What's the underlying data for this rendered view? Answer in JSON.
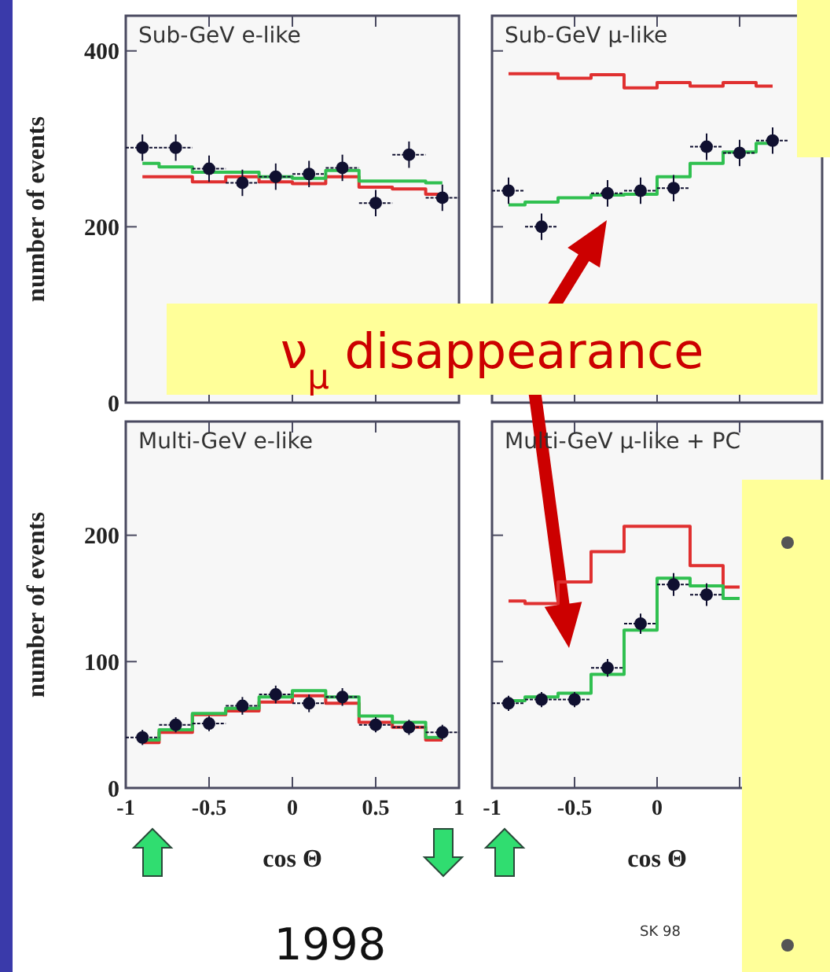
{
  "chart_data": [
    {
      "type": "step",
      "title": "Sub-GeV e-like",
      "ylabel": "number of events",
      "xlim": [
        -1,
        1
      ],
      "xticks": [
        -1,
        -0.5,
        0,
        0.5,
        1
      ],
      "ylim": [
        0,
        440
      ],
      "yticks": [
        0,
        200,
        400
      ],
      "tick_labels": "y",
      "annotations": [
        "ν$_{μ}$ disappearance"
      ],
      "series": [
        {
          "color": "#e03030",
          "x": [
            -0.9,
            -0.7,
            -0.5,
            -0.3,
            -0.1,
            0.1,
            0.3,
            0.5,
            0.7,
            0.9
          ],
          "values": [
            257,
            257,
            251,
            257,
            251,
            249,
            257,
            245,
            243,
            237
          ]
        },
        {
          "color": "#30c050",
          "x": [
            -0.9,
            -0.7,
            -0.5,
            -0.3,
            -0.1,
            0.1,
            0.3,
            0.5,
            0.7,
            0.9
          ],
          "values": [
            272,
            268,
            262,
            262,
            257,
            255,
            264,
            252,
            252,
            250
          ]
        },
        {
          "type": "scatter",
          "marker": "circle",
          "color": "#101030",
          "x": [
            -0.9,
            -0.7,
            -0.5,
            -0.3,
            -0.1,
            0.1,
            0.3,
            0.5,
            0.7,
            0.9
          ],
          "values": [
            290,
            290,
            266,
            250,
            257,
            260,
            267,
            227,
            282,
            233
          ],
          "errors": [
            15,
            15,
            15,
            15,
            15,
            15,
            15,
            15,
            15,
            15
          ],
          "xerrors": [
            0.1,
            0.1,
            0.1,
            0.1,
            0.1,
            0.1,
            0.1,
            0.1,
            0.1,
            0.1
          ]
        }
      ]
    },
    {
      "type": "step",
      "title": "Sub-GeV μ-like",
      "xlim": [
        -1,
        1
      ],
      "xticks": [
        -1,
        -0.5,
        0,
        0.5,
        1
      ],
      "ylim": [
        0,
        440
      ],
      "yticks": [
        {
          "value": 0,
          "label": null
        },
        {
          "value": 200,
          "label": null
        },
        {
          "value": 400,
          "label": null
        }
      ],
      "tick_labels": false,
      "series": [
        {
          "color": "#e03030",
          "x": [
            -0.9,
            -0.7,
            -0.5,
            -0.3,
            -0.1,
            0.1,
            0.3,
            0.5,
            0.7
          ],
          "values": [
            374,
            374,
            369,
            373,
            358,
            364,
            360,
            364,
            360
          ]
        },
        {
          "color": "#30c050",
          "x": [
            -0.9,
            -0.7,
            -0.5,
            -0.3,
            -0.1,
            0.1,
            0.3,
            0.5,
            0.7
          ],
          "values": [
            225,
            228,
            233,
            236,
            237,
            257,
            272,
            285,
            295
          ]
        },
        {
          "type": "scatter",
          "marker": "circle",
          "color": "#101030",
          "x": [
            -0.9,
            -0.7,
            -0.5,
            -0.3,
            -0.1,
            0.1,
            0.3,
            0.5,
            0.7
          ],
          "values": [
            241,
            200,
            null,
            238,
            241,
            244,
            291,
            284,
            298
          ],
          "errors": [
            15,
            15,
            null,
            15,
            15,
            15,
            15,
            15,
            15
          ],
          "xerrors": [
            0.1,
            0.1,
            null,
            0.1,
            0.1,
            0.1,
            0.1,
            0.1,
            0.1
          ]
        }
      ]
    },
    {
      "type": "step",
      "title": "Multi-GeV e-like",
      "ylabel": "number of events",
      "xlabel": "cos Θ",
      "xlim": [
        -1,
        1
      ],
      "xticks": [
        -1,
        -0.5,
        0,
        0.5,
        1
      ],
      "ylim": [
        0,
        290
      ],
      "yticks": [
        0,
        100,
        200
      ],
      "annotations": [
        "1998"
      ],
      "series": [
        {
          "color": "#e03030",
          "x": [
            -0.9,
            -0.7,
            -0.5,
            -0.3,
            -0.1,
            0.1,
            0.3,
            0.5,
            0.7,
            0.9
          ],
          "values": [
            36,
            44,
            58,
            61,
            68,
            73,
            67,
            52,
            48,
            38
          ]
        },
        {
          "color": "#30c050",
          "x": [
            -0.9,
            -0.7,
            -0.5,
            -0.3,
            -0.1,
            0.1,
            0.3,
            0.5,
            0.7,
            0.9
          ],
          "values": [
            38,
            46,
            59,
            63,
            72,
            77,
            72,
            57,
            52,
            40
          ]
        },
        {
          "type": "scatter",
          "marker": "circle",
          "color": "#101030",
          "x": [
            -0.9,
            -0.7,
            -0.5,
            -0.3,
            -0.1,
            0.1,
            0.3,
            0.5,
            0.7,
            0.9
          ],
          "values": [
            40,
            50,
            51,
            65,
            74,
            67,
            72,
            50,
            48,
            44
          ],
          "errors": [
            6,
            6,
            6,
            7,
            7,
            7,
            7,
            6,
            6,
            6
          ],
          "xerrors": [
            0.1,
            0.1,
            0.1,
            0.1,
            0.1,
            0.1,
            0.1,
            0.1,
            0.1,
            0.1
          ]
        }
      ]
    },
    {
      "type": "step",
      "title": "Multi-GeV μ-like + PC",
      "xlabel": "cos Θ",
      "xlim": [
        -1,
        1
      ],
      "xticks": [
        -1,
        -0.5,
        0,
        {
          "value": 0.5,
          "label": null
        },
        {
          "value": 1,
          "label": null
        }
      ],
      "ylim": [
        0,
        290
      ],
      "yticks": [
        {
          "value": 0,
          "label": null
        },
        {
          "value": 100,
          "label": null
        },
        {
          "value": 200,
          "label": null
        }
      ],
      "tick_labels": "x",
      "annotations": [
        "SK 98"
      ],
      "series": [
        {
          "color": "#e03030",
          "x": [
            -0.9,
            -0.7,
            -0.5,
            -0.3,
            -0.1,
            0.1,
            0.3,
            0.5
          ],
          "values": [
            148,
            146,
            163,
            187,
            207,
            207,
            176,
            159
          ]
        },
        {
          "color": "#30c050",
          "x": [
            -0.9,
            -0.7,
            -0.5,
            -0.3,
            -0.1,
            0.1,
            0.3,
            0.5
          ],
          "values": [
            69,
            72,
            75,
            90,
            125,
            166,
            160,
            150
          ]
        },
        {
          "type": "scatter",
          "marker": "circle",
          "color": "#101030",
          "x": [
            -0.9,
            -0.7,
            -0.5,
            -0.3,
            -0.1,
            0.1,
            0.3
          ],
          "values": [
            67,
            70,
            70,
            95,
            130,
            161,
            153
          ],
          "errors": [
            6,
            6,
            6,
            7,
            8,
            9,
            9
          ],
          "xerrors": [
            0.1,
            0.1,
            0.1,
            0.1,
            0.1,
            0.1,
            0.1
          ]
        }
      ]
    }
  ]
}
